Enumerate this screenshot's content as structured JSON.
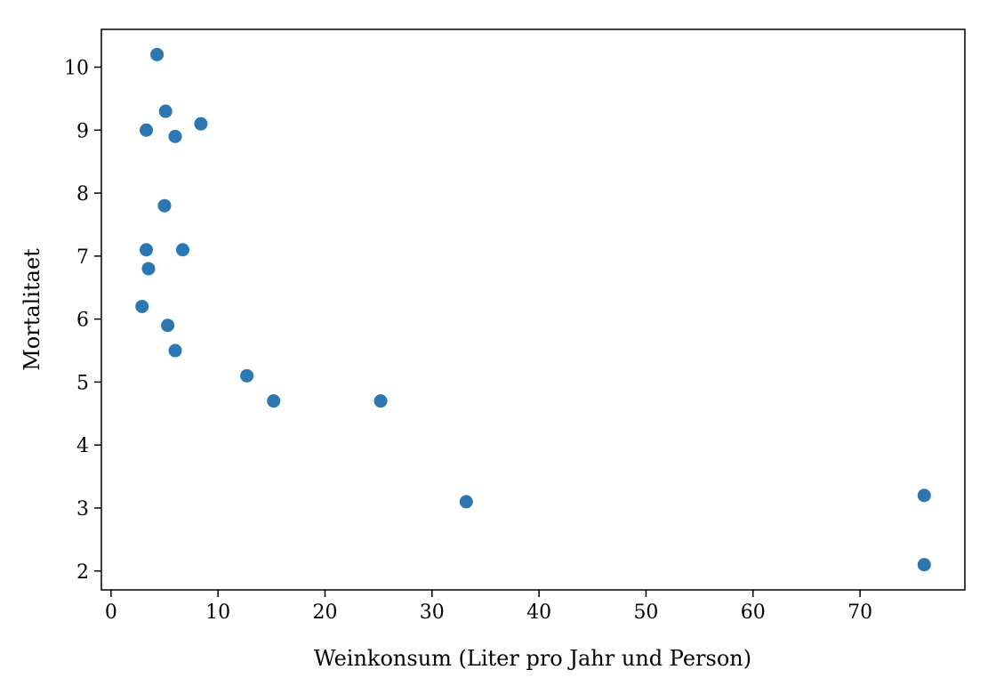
{
  "chart_data": {
    "type": "scatter",
    "title": "",
    "xlabel": "Weinkonsum (Liter pro Jahr und Person)",
    "ylabel": "Mortalitaet",
    "xlim": [
      -0.9,
      79.8
    ],
    "ylim": [
      1.7,
      10.6
    ],
    "xticks": [
      0,
      10,
      20,
      30,
      40,
      50,
      60,
      70
    ],
    "yticks": [
      2,
      3,
      4,
      5,
      6,
      7,
      8,
      9,
      10
    ],
    "grid": false,
    "marker_color": "#2a77b4",
    "points": [
      {
        "x": 4.3,
        "y": 10.2
      },
      {
        "x": 5.1,
        "y": 9.3
      },
      {
        "x": 3.3,
        "y": 9.0
      },
      {
        "x": 6.0,
        "y": 8.9
      },
      {
        "x": 8.4,
        "y": 9.1
      },
      {
        "x": 5.0,
        "y": 7.8
      },
      {
        "x": 3.3,
        "y": 7.1
      },
      {
        "x": 6.7,
        "y": 7.1
      },
      {
        "x": 3.5,
        "y": 6.8
      },
      {
        "x": 2.9,
        "y": 6.2
      },
      {
        "x": 5.3,
        "y": 5.9
      },
      {
        "x": 6.0,
        "y": 5.5
      },
      {
        "x": 12.7,
        "y": 5.1
      },
      {
        "x": 15.2,
        "y": 4.7
      },
      {
        "x": 25.2,
        "y": 4.7
      },
      {
        "x": 33.2,
        "y": 3.1
      },
      {
        "x": 76.0,
        "y": 3.2
      },
      {
        "x": 76.0,
        "y": 2.1
      }
    ]
  }
}
